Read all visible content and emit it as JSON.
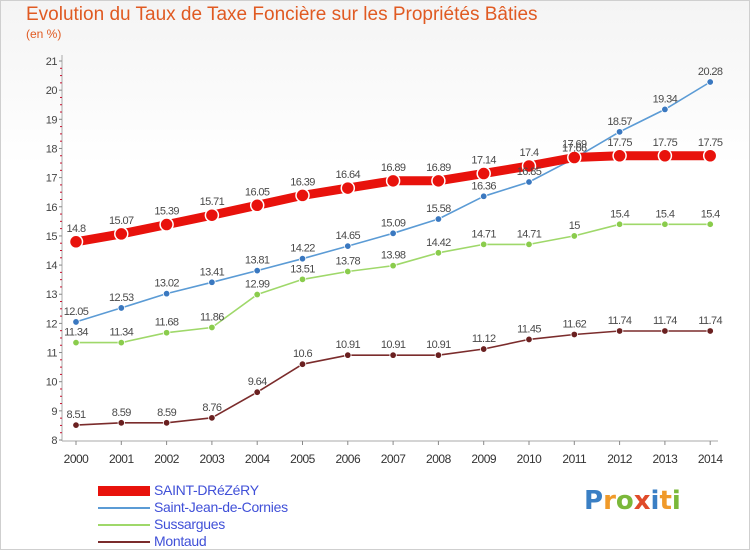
{
  "title": "Evolution du Taux de Taxe Foncière sur les Propriétés Bâties",
  "unit_label": "(en %)",
  "logo": {
    "text": "Proxiti",
    "letters": [
      "P",
      "r",
      "o",
      "x",
      "i",
      "t",
      "i"
    ],
    "colors": [
      "#3a7fc4",
      "#f09a2a",
      "#7bb83a",
      "#e04b2a",
      "#3a7fc4",
      "#f09a2a",
      "#7bb83a"
    ]
  },
  "chart_data": {
    "type": "line",
    "title": "Evolution du Taux de Taxe Foncière sur les Propriétés Bâties",
    "ylabel": "(en %)",
    "x": [
      "2000",
      "2001",
      "2002",
      "2003",
      "2004",
      "2005",
      "2006",
      "2007",
      "2008",
      "2009",
      "2010",
      "2011",
      "2012",
      "2013",
      "2014"
    ],
    "ylim": [
      8,
      21
    ],
    "yticks": [
      "8",
      "9",
      "10",
      "11",
      "12",
      "13",
      "14",
      "15",
      "16",
      "17",
      "18",
      "19",
      "20",
      "21"
    ],
    "grid": false,
    "legend_position": "bottom-left",
    "series": [
      {
        "name": "SAINT-DRéZéRY",
        "color": "#e8120c",
        "emphasis": true,
        "values": [
          14.8,
          15.07,
          15.39,
          15.71,
          16.05,
          16.39,
          16.64,
          16.89,
          16.89,
          17.14,
          17.4,
          17.69,
          17.75,
          17.75,
          17.75
        ],
        "labels": [
          "14.8",
          "15.07",
          "15.39",
          "15.71",
          "16.05",
          "16.39",
          "16.64",
          "16.89",
          "16.89",
          "17.14",
          "17.4",
          "17.69",
          "17.75",
          "17.75",
          "17.75"
        ]
      },
      {
        "name": "Saint-Jean-de-Cornies",
        "color": "#5b9bd5",
        "marker": "#3a78c0",
        "values": [
          12.05,
          12.53,
          13.02,
          13.41,
          13.81,
          14.22,
          14.65,
          15.09,
          15.58,
          16.36,
          16.85,
          17.66,
          18.57,
          19.34,
          20.28
        ],
        "labels": [
          "12.05",
          "12.53",
          "13.02",
          "13.41",
          "13.81",
          "14.22",
          "14.65",
          "15.09",
          "15.58",
          "16.36",
          "16.85",
          "17.66",
          "18.57",
          "19.34",
          "20.28"
        ]
      },
      {
        "name": "Sussargues",
        "color": "#9fd86a",
        "marker": "#8acc4c",
        "values": [
          11.34,
          11.34,
          11.68,
          11.86,
          12.99,
          13.51,
          13.78,
          13.98,
          14.42,
          14.71,
          14.71,
          15,
          15.4,
          15.4,
          15.4
        ],
        "labels": [
          "11.34",
          "11.34",
          "11.68",
          "11.86",
          "12.99",
          "13.51",
          "13.78",
          "13.98",
          "14.42",
          "14.71",
          "14.71",
          "15",
          "15.4",
          "15.4",
          "15.4"
        ]
      },
      {
        "name": "Montaud",
        "color": "#7b2c2c",
        "marker": "#6a2020",
        "values": [
          8.51,
          8.59,
          8.59,
          8.76,
          9.64,
          10.6,
          10.91,
          10.91,
          10.91,
          11.12,
          11.45,
          11.62,
          11.74,
          11.74,
          11.74
        ],
        "labels": [
          "8.51",
          "8.59",
          "8.59",
          "8.76",
          "9.64",
          "10.6",
          "10.91",
          "10.91",
          "10.91",
          "11.12",
          "11.45",
          "11.62",
          "11.74",
          "11.74",
          "11.74"
        ]
      }
    ]
  }
}
